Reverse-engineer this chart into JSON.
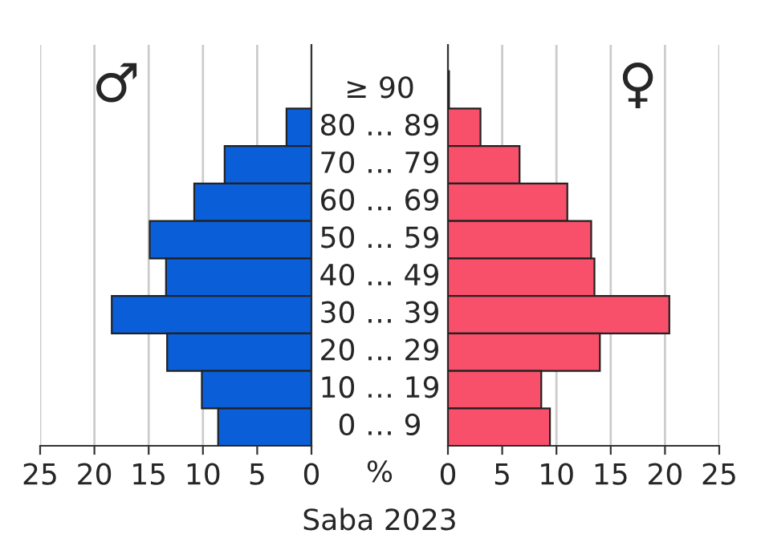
{
  "chart_data": [
    {
      "type": "bar",
      "orientation": "horizontal",
      "categories": [
        "≥ 90",
        "80 … 89",
        "70 … 79",
        "60 … 69",
        "50 … 59",
        "40 … 49",
        "30 … 39",
        "20 … 29",
        "10 … 19",
        "0 … 9"
      ],
      "series": [
        {
          "name": "♂",
          "color": "#0a5fd8",
          "values": [
            null,
            2.3,
            8.0,
            10.8,
            14.9,
            13.4,
            18.4,
            13.3,
            10.1,
            8.6
          ]
        }
      ],
      "xlim": [
        25,
        0
      ],
      "xticks": [
        25,
        20,
        15,
        10,
        5,
        0
      ],
      "grid": "x",
      "annotations": [
        "%",
        "Saba 2023"
      ]
    },
    {
      "type": "bar",
      "orientation": "horizontal",
      "series": [
        {
          "name": "♀",
          "color": "#f8506a",
          "values": [
            0.1,
            3.0,
            6.6,
            11.0,
            13.2,
            13.5,
            20.4,
            14.0,
            8.6,
            9.4
          ]
        }
      ],
      "xlim": [
        0,
        25
      ],
      "xticks": [
        0,
        5,
        10,
        15,
        20,
        25
      ],
      "grid": "x",
      "tick_labels": "x"
    }
  ]
}
